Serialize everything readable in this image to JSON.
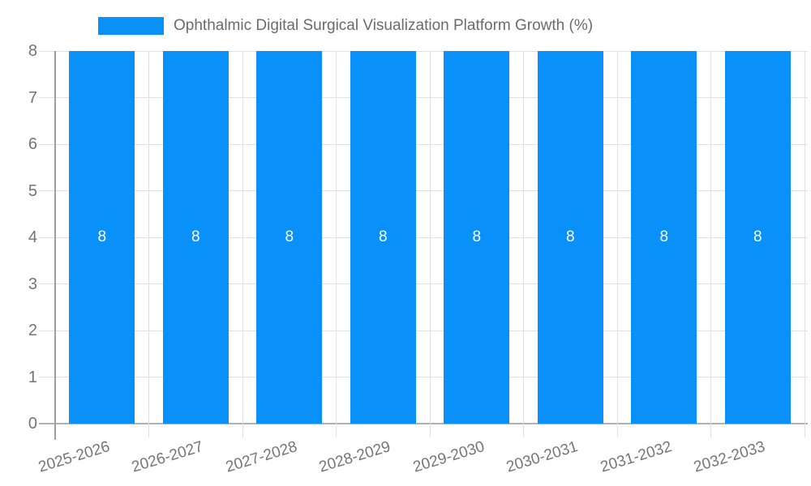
{
  "legend": {
    "label": "Ophthalmic Digital Surgical Visualization Platform Growth (%)"
  },
  "chart_data": {
    "type": "bar",
    "title": "Ophthalmic Digital Surgical Visualization Platform Growth (%)",
    "categories": [
      "2025-2026",
      "2026-2027",
      "2027-2028",
      "2028-2029",
      "2029-2030",
      "2030-2031",
      "2031-2032",
      "2032-2033"
    ],
    "values": [
      8,
      8,
      8,
      8,
      8,
      8,
      8,
      8
    ],
    "bar_labels": [
      "8",
      "8",
      "8",
      "8",
      "8",
      "8",
      "8",
      "8"
    ],
    "xlabel": "",
    "ylabel": "",
    "ylim": [
      0,
      8
    ],
    "y_ticks": [
      0,
      1,
      2,
      3,
      4,
      5,
      6,
      7,
      8
    ],
    "grid": true,
    "legend_position": "top",
    "x_label_rotation_deg": -17
  },
  "colors": {
    "bar": "#0a90f9",
    "gridline": "#e0e0e0",
    "axis_line": "#9e9e9e",
    "baseline": "#b0b0b0",
    "tick_text": "#757575",
    "legend_text": "#6b6b6b",
    "annotation_text": "#ffffff",
    "background": "#ffffff"
  }
}
